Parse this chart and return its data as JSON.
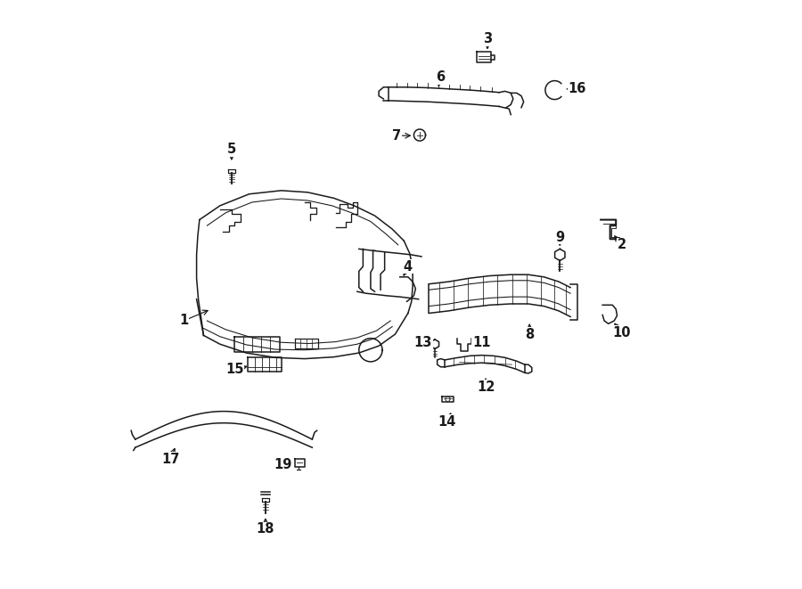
{
  "bg_color": "#ffffff",
  "line_color": "#1a1a1a",
  "figsize": [
    9.0,
    6.61
  ],
  "dpi": 100,
  "label_positions": {
    "1": [
      0.128,
      0.455,
      0.175,
      0.475
    ],
    "2": [
      0.878,
      0.585,
      0.862,
      0.605
    ],
    "3": [
      0.648,
      0.938,
      0.648,
      0.915
    ],
    "4": [
      0.512,
      0.548,
      0.502,
      0.527
    ],
    "5": [
      0.21,
      0.748,
      0.21,
      0.725
    ],
    "6": [
      0.568,
      0.872,
      0.563,
      0.851
    ],
    "7": [
      0.492,
      0.772,
      0.522,
      0.772
    ],
    "8": [
      0.72,
      0.432,
      0.72,
      0.455
    ],
    "9": [
      0.772,
      0.598,
      0.772,
      0.578
    ],
    "10": [
      0.878,
      0.435,
      0.862,
      0.455
    ],
    "11": [
      0.638,
      0.418,
      0.618,
      0.415
    ],
    "12": [
      0.645,
      0.342,
      0.645,
      0.362
    ],
    "13": [
      0.538,
      0.418,
      0.556,
      0.415
    ],
    "14": [
      0.578,
      0.282,
      0.588,
      0.302
    ],
    "15": [
      0.215,
      0.372,
      0.242,
      0.378
    ],
    "16": [
      0.802,
      0.852,
      0.778,
      0.852
    ],
    "17": [
      0.105,
      0.218,
      0.115,
      0.242
    ],
    "18": [
      0.268,
      0.098,
      0.268,
      0.122
    ],
    "19": [
      0.298,
      0.208,
      0.318,
      0.208
    ]
  }
}
